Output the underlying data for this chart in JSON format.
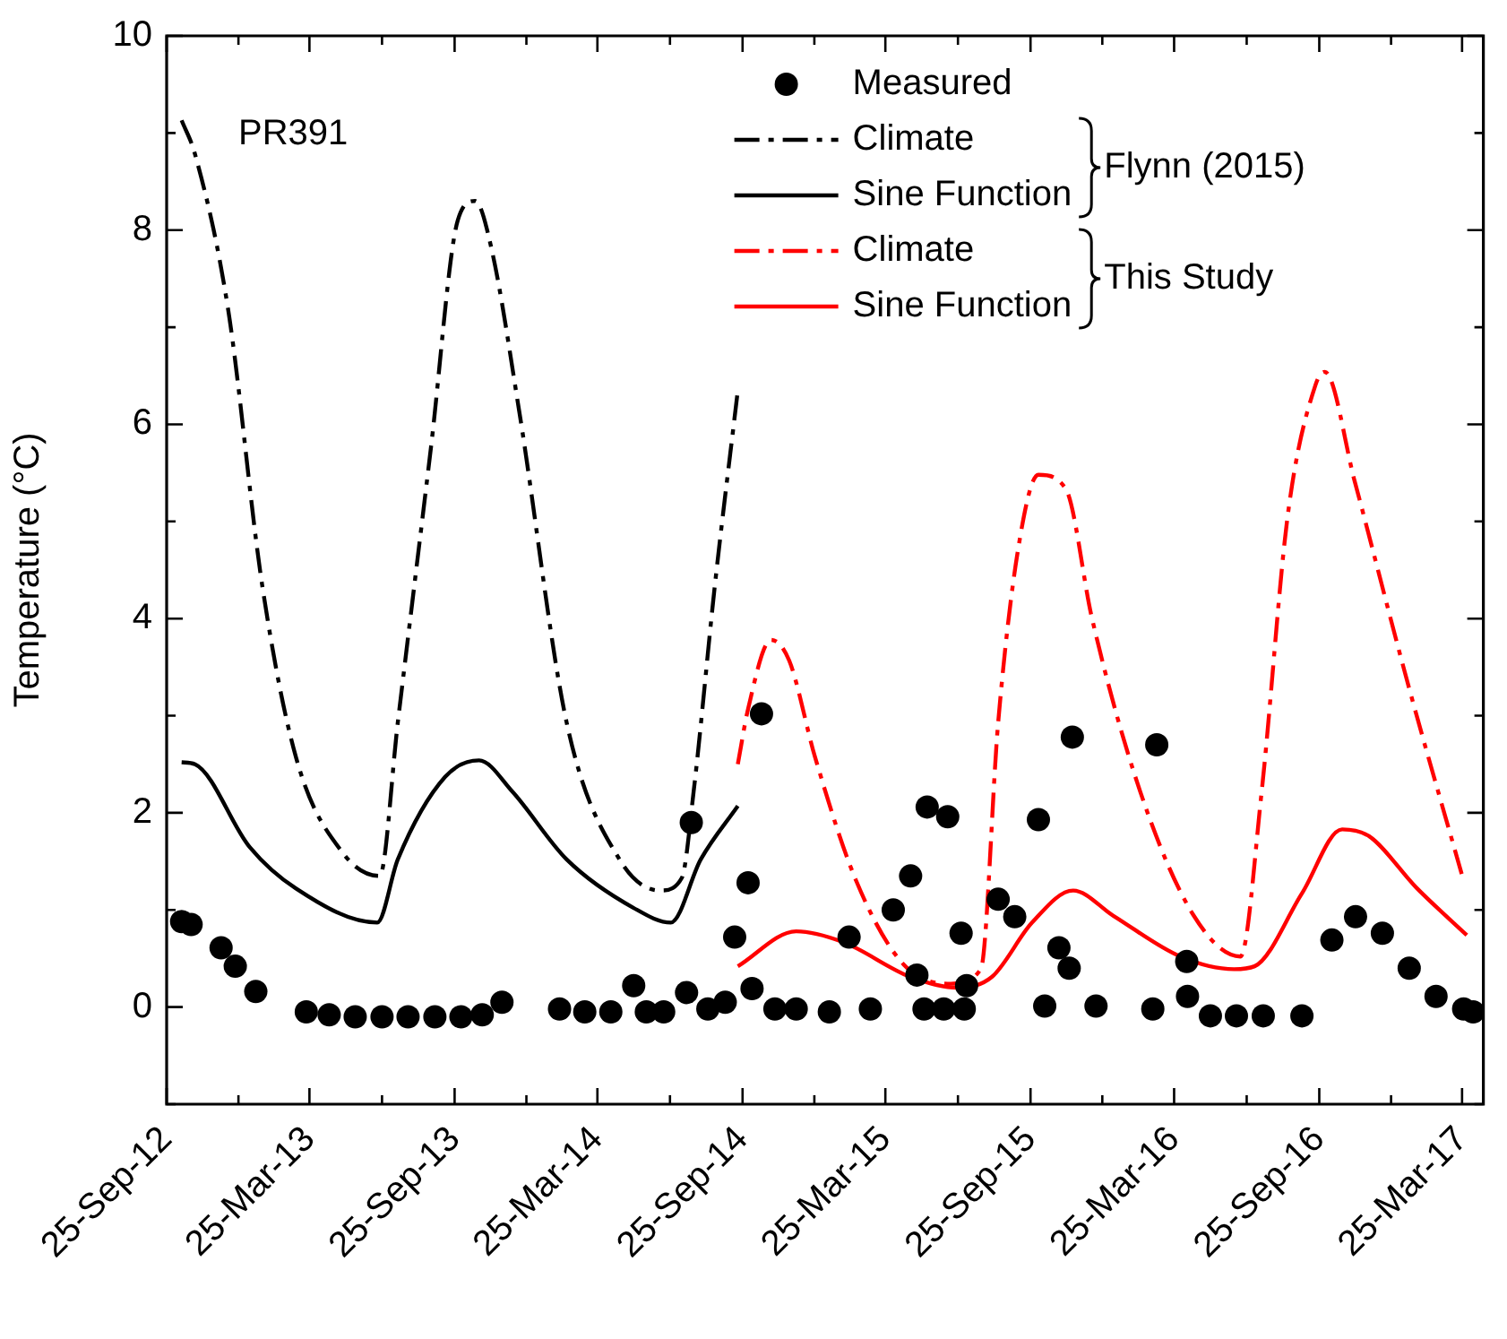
{
  "chart_data": {
    "type": "line",
    "ylabel": "Temperature (°C)",
    "annotations": [
      "PR391",
      "Flynn (2015)",
      "This Study"
    ],
    "xlim": [
      "2012-09-25",
      "2017-04-21"
    ],
    "ylim": [
      -1,
      10
    ],
    "xticks": [
      {
        "value": "2012-09-25",
        "label": "25-Sep-12"
      },
      {
        "value": "2012-12-25",
        "label": null
      },
      {
        "value": "2013-03-25",
        "label": "25-Mar-13"
      },
      {
        "value": "2013-06-25",
        "label": null
      },
      {
        "value": "2013-09-25",
        "label": "25-Sep-13"
      },
      {
        "value": "2013-12-25",
        "label": null
      },
      {
        "value": "2014-03-25",
        "label": "25-Mar-14"
      },
      {
        "value": "2014-06-25",
        "label": null
      },
      {
        "value": "2014-09-25",
        "label": "25-Sep-14"
      },
      {
        "value": "2014-12-25",
        "label": null
      },
      {
        "value": "2015-03-25",
        "label": "25-Mar-15"
      },
      {
        "value": "2015-06-25",
        "label": null
      },
      {
        "value": "2015-09-25",
        "label": "25-Sep-15"
      },
      {
        "value": "2015-12-25",
        "label": null
      },
      {
        "value": "2016-03-25",
        "label": "25-Mar-16"
      },
      {
        "value": "2016-06-25",
        "label": null
      },
      {
        "value": "2016-09-25",
        "label": "25-Sep-16"
      },
      {
        "value": "2016-12-25",
        "label": null
      },
      {
        "value": "2017-03-25",
        "label": "25-Mar-17"
      }
    ],
    "yticks": [
      {
        "value": -1,
        "label": null
      },
      0,
      {
        "value": 1,
        "label": null
      },
      2,
      {
        "value": 3,
        "label": null
      },
      4,
      {
        "value": 5,
        "label": null
      },
      6,
      {
        "value": 7,
        "label": null
      },
      8,
      {
        "value": 9,
        "label": null
      },
      10
    ],
    "grid": false,
    "legend": "top right",
    "series": [
      {
        "name": "Measured",
        "type": "scatter",
        "marker": "circle",
        "color": "#000000",
        "x": [
          "2012-10-14",
          "2012-10-26",
          "2012-12-03",
          "2012-12-21",
          "2013-01-16",
          "2013-03-21",
          "2013-04-19",
          "2013-05-22",
          "2013-06-25",
          "2013-07-28",
          "2013-08-31",
          "2013-10-03",
          "2013-10-30",
          "2013-11-24",
          "2014-02-05",
          "2014-03-09",
          "2014-04-11",
          "2014-05-10",
          "2014-05-26",
          "2014-06-17",
          "2014-07-16",
          "2014-07-22",
          "2014-08-12",
          "2014-09-03",
          "2014-09-15",
          "2014-10-02",
          "2014-10-07",
          "2014-10-19",
          "2014-11-05",
          "2014-12-02",
          "2015-01-13",
          "2015-02-07",
          "2015-03-06",
          "2015-04-04",
          "2015-04-26",
          "2015-05-04",
          "2015-05-13",
          "2015-05-17",
          "2015-06-07",
          "2015-06-12",
          "2015-06-29",
          "2015-07-03",
          "2015-07-06",
          "2015-08-15",
          "2015-09-05",
          "2015-10-05",
          "2015-10-13",
          "2015-10-31",
          "2015-11-13",
          "2015-11-17",
          "2015-12-17",
          "2016-02-27",
          "2016-03-03",
          "2016-04-10",
          "2016-04-11",
          "2016-05-10",
          "2016-06-12",
          "2016-07-16",
          "2016-09-03",
          "2016-10-11",
          "2016-11-10",
          "2016-12-14",
          "2017-01-17",
          "2017-02-20",
          "2017-03-27",
          "2017-04-08"
        ],
        "values": [
          0.88,
          0.85,
          0.61,
          0.42,
          0.16,
          -0.05,
          -0.08,
          -0.1,
          -0.1,
          -0.1,
          -0.1,
          -0.1,
          -0.08,
          0.05,
          -0.02,
          -0.05,
          -0.05,
          0.22,
          -0.05,
          -0.05,
          0.15,
          1.9,
          -0.02,
          0.05,
          0.72,
          1.28,
          0.19,
          3.02,
          -0.02,
          -0.02,
          -0.05,
          0.72,
          -0.02,
          1.0,
          1.35,
          0.33,
          -0.02,
          2.06,
          -0.02,
          1.96,
          0.76,
          -0.02,
          0.22,
          1.11,
          0.93,
          1.93,
          0.01,
          0.61,
          0.4,
          2.78,
          0.01,
          -0.02,
          2.7,
          0.47,
          0.11,
          -0.09,
          -0.09,
          -0.09,
          -0.09,
          0.69,
          0.93,
          0.76,
          0.4,
          0.11,
          -0.02,
          -0.05
        ]
      },
      {
        "name": "Climate",
        "type": "line",
        "marker": "none",
        "line_style": "dashdot",
        "color": "#000000",
        "x": [
          "2012-10-14",
          "2012-10-31",
          "2012-12-12",
          "2013-01-24",
          "2013-03-08",
          "2013-05-06",
          "2013-06-22",
          "2013-07-15",
          "2013-08-26",
          "2013-09-29",
          "2013-10-21",
          "2013-11-11",
          "2013-12-16",
          "2014-02-14",
          "2014-04-22",
          "2014-06-13",
          "2014-07-10",
          "2014-07-25",
          "2014-08-21",
          "2014-09-19"
        ],
        "values": [
          9.13,
          8.78,
          7.18,
          4.35,
          2.57,
          1.59,
          1.35,
          2.93,
          5.76,
          8.1,
          8.3,
          7.8,
          6.13,
          2.93,
          1.52,
          1.2,
          1.33,
          2.22,
          4.35,
          6.35
        ]
      },
      {
        "name": "Sine Function",
        "type": "line",
        "marker": "none",
        "line_style": "solid",
        "color": "#000000",
        "x": [
          "2012-10-14",
          "2012-10-31",
          "2013-01-08",
          "2013-03-08",
          "2013-06-19",
          "2013-07-15",
          "2013-09-13",
          "2013-10-26",
          "2013-12-07",
          "2014-02-14",
          "2014-05-10",
          "2014-06-26",
          "2014-08-03",
          "2014-09-19"
        ],
        "values": [
          2.52,
          2.5,
          1.65,
          1.22,
          0.87,
          1.52,
          2.37,
          2.54,
          2.22,
          1.52,
          1.02,
          0.87,
          1.52,
          2.07
        ]
      },
      {
        "name": "Climate",
        "type": "line",
        "marker": "none",
        "line_style": "dashdot",
        "color": "#ff0000",
        "x": [
          "2014-09-19",
          "2014-10-02",
          "2014-10-31",
          "2014-11-23",
          "2014-12-26",
          "2015-02-16",
          "2015-04-17",
          "2015-06-16",
          "2015-07-24",
          "2015-08-15",
          "2015-09-09",
          "2015-10-05",
          "2015-11-09",
          "2015-12-12",
          "2016-02-11",
          "2016-04-19",
          "2016-06-17",
          "2016-07-14",
          "2016-08-16",
          "2016-09-20",
          "2016-10-02",
          "2016-11-09",
          "2017-01-17",
          "2017-03-27"
        ],
        "values": [
          2.5,
          3.07,
          3.78,
          3.57,
          2.57,
          1.3,
          0.44,
          0.24,
          0.39,
          2.93,
          4.7,
          5.48,
          5.33,
          4.0,
          2.22,
          0.94,
          0.52,
          2.22,
          5.06,
          6.4,
          6.54,
          5.41,
          3.28,
          1.3
        ]
      },
      {
        "name": "Sine Function",
        "type": "line",
        "marker": "none",
        "line_style": "solid",
        "color": "#ff0000",
        "x": [
          "2014-09-19",
          "2014-12-02",
          "2015-01-30",
          "2015-04-26",
          "2015-06-24",
          "2015-08-07",
          "2015-09-27",
          "2015-11-18",
          "2016-01-08",
          "2016-04-02",
          "2016-06-09",
          "2016-07-05",
          "2016-09-03",
          "2016-10-24",
          "2016-11-27",
          "2017-01-26",
          "2017-03-31"
        ],
        "values": [
          0.42,
          0.78,
          0.67,
          0.31,
          0.2,
          0.31,
          0.87,
          1.2,
          0.94,
          0.52,
          0.39,
          0.42,
          1.17,
          1.83,
          1.76,
          1.23,
          0.74
        ]
      }
    ]
  }
}
